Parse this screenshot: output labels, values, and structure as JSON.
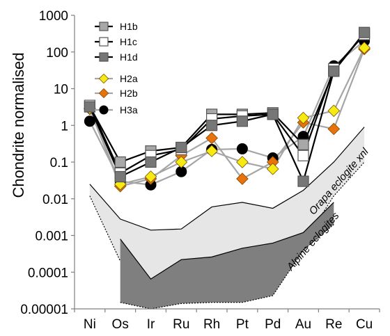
{
  "chart_data": {
    "type": "line",
    "ylabel": "Chondrite normalised",
    "yscale": "log",
    "ylim": [
      1e-05,
      1000
    ],
    "y_ticks": [
      "0.00001",
      "0.0001",
      "0.001",
      "0.01",
      "0.1",
      "1",
      "10",
      "100",
      "1000"
    ],
    "categories": [
      "Ni",
      "Os",
      "Ir",
      "Ru",
      "Rh",
      "Pt",
      "Pd",
      "Au",
      "Re",
      "Cu"
    ],
    "legend_position": "top-left",
    "series": [
      {
        "name": "H1b",
        "marker": "square",
        "color": "#a8a8a8",
        "line": "#000000",
        "values": [
          3.3,
          0.1,
          0.2,
          0.25,
          2.0,
          2.0,
          2.2,
          0.3,
          30,
          320
        ]
      },
      {
        "name": "H1c",
        "marker": "square",
        "color": "#ffffff",
        "line": "#000000",
        "values": [
          3.5,
          0.05,
          0.15,
          0.22,
          1.5,
          1.8,
          2.0,
          0.15,
          35,
          300
        ]
      },
      {
        "name": "H1d",
        "marker": "square",
        "color": "#777777",
        "line": "#000000",
        "values": [
          3.2,
          0.04,
          0.1,
          0.25,
          1.0,
          1.3,
          2.0,
          0.03,
          30,
          340
        ]
      },
      {
        "name": "H2a",
        "marker": "diamond",
        "color": "#f5ea12",
        "line": "#a5a5a5",
        "values": [
          2.9,
          0.025,
          0.04,
          0.1,
          0.2,
          0.1,
          0.065,
          1.6,
          2.5,
          130
        ]
      },
      {
        "name": "H2b",
        "marker": "diamond",
        "color": "#e8720c",
        "line": "#a5a5a5",
        "values": [
          2.8,
          0.022,
          0.035,
          0.15,
          0.45,
          0.035,
          0.1,
          1.2,
          0.8,
          120
        ]
      },
      {
        "name": "H3a",
        "marker": "circle",
        "color": "#000000",
        "line": "#a5a5a5",
        "values": [
          1.3,
          0.03,
          0.024,
          0.055,
          0.22,
          0.23,
          0.13,
          0.5,
          42,
          200
        ]
      }
    ],
    "bands": [
      {
        "name": "Orapa eclogite xnl",
        "color": "#e6e6e6",
        "upper": [
          0.025,
          0.0028,
          0.0014,
          0.0015,
          0.006,
          0.008,
          0.0055,
          0.017,
          0.1,
          0.9
        ],
        "lower": [
          0.012,
          0.0002,
          3e-05,
          0.00012,
          0.0001,
          0.0001,
          0.0002,
          0.0006,
          0.012,
          0.1
        ]
      },
      {
        "name": "Alpine eclogites",
        "color": "#7f7f7f",
        "upper": [
          null,
          0.0008,
          6.5e-05,
          0.00022,
          0.00026,
          0.00045,
          0.00062,
          0.0012,
          0.008,
          null
        ],
        "lower": [
          null,
          1.5e-05,
          1e-05,
          1.4e-05,
          1.5e-05,
          1.5e-05,
          2.3e-05,
          0.0004,
          0.002,
          null
        ]
      }
    ]
  }
}
